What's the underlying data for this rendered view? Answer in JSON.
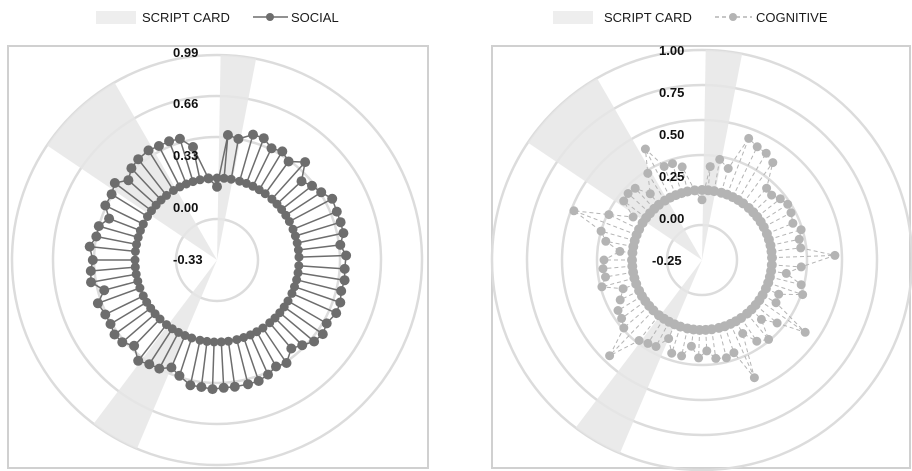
{
  "chart_data": [
    {
      "type": "radar",
      "subtype": "polar-lollipop",
      "legend": {
        "band_label": "SCRIPT CARD",
        "series_label": "SOCIAL",
        "position": "top"
      },
      "radial_ticks": [
        "0.99",
        "0.66",
        "0.33",
        "0.00",
        "-0.33"
      ],
      "rlim": [
        -0.66,
        0.99
      ],
      "colors": {
        "series": "#6d6d6d",
        "band": "#e6e6e6",
        "rings": "#dcdcdc"
      },
      "line_style": "solid",
      "script_card_bands": [
        {
          "start_deg": -56,
          "end_deg": -30,
          "value": 0.99
        },
        {
          "start_deg": 1,
          "end_deg": 11,
          "value": 0.99
        },
        {
          "start_deg": 203,
          "end_deg": 217,
          "value": 0.99
        }
      ],
      "series": [
        {
          "name": "SOCIAL",
          "angles": [
            0,
            5,
            10,
            16,
            21,
            26,
            31,
            36,
            42,
            47,
            52,
            57,
            62,
            68,
            73,
            78,
            83,
            88,
            94,
            99,
            104,
            109,
            114,
            120,
            125,
            130,
            135,
            140,
            146,
            151,
            156,
            161,
            166,
            172,
            177,
            182,
            187,
            192,
            198,
            203,
            208,
            213,
            218,
            224,
            229,
            234,
            239,
            244,
            250,
            255,
            260,
            265,
            270,
            276,
            281,
            286,
            291,
            296,
            302,
            307,
            312,
            317,
            322,
            328,
            333,
            338,
            343,
            348,
            354
          ],
          "values": [
            -0.07,
            0.35,
            0.33,
            0.39,
            0.39,
            0.34,
            0.36,
            0.32,
            0.4,
            0.27,
            0.31,
            0.34,
            0.39,
            0.38,
            0.38,
            0.38,
            0.34,
            0.38,
            0.37,
            0.38,
            0.37,
            0.39,
            0.39,
            0.36,
            0.38,
            0.36,
            0.31,
            0.27,
            0.34,
            0.32,
            0.35,
            0.37,
            0.37,
            0.37,
            0.37,
            0.38,
            0.37,
            0.37,
            0.32,
            0.28,
            0.33,
            0.34,
            0.37,
            0.3,
            0.35,
            0.36,
            0.34,
            0.34,
            0.36,
            0.28,
            0.37,
            0.36,
            0.34,
            0.37,
            0.33,
            0.33,
            0.27,
            0.34,
            0.34,
            0.37,
            0.3,
            0.35,
            0.37,
            0.38,
            0.37,
            0.37,
            0.36,
            0.27,
            0.0
          ]
        }
      ]
    },
    {
      "type": "radar",
      "subtype": "polar-lollipop",
      "legend": {
        "band_label": "SCRIPT CARD",
        "series_label": "COGNITIVE",
        "position": "top"
      },
      "radial_ticks": [
        "1.00",
        "0.75",
        "0.50",
        "0.25",
        "0.00",
        "-0.25"
      ],
      "rlim": [
        -0.5,
        1.0
      ],
      "colors": {
        "series": "#b4b4b4",
        "band": "#e6e6e6",
        "rings": "#dcdcdc"
      },
      "line_style": "dashed",
      "script_card_bands": [
        {
          "start_deg": -56,
          "end_deg": -30,
          "value": 1.0
        },
        {
          "start_deg": 1,
          "end_deg": 11,
          "value": 1.0
        },
        {
          "start_deg": 203,
          "end_deg": 217,
          "value": 1.0
        }
      ],
      "series": [
        {
          "name": "COGNITIVE",
          "angles": [
            0,
            5,
            10,
            16,
            21,
            26,
            31,
            36,
            42,
            47,
            52,
            57,
            62,
            68,
            73,
            78,
            83,
            88,
            94,
            99,
            104,
            109,
            114,
            120,
            125,
            130,
            135,
            140,
            146,
            151,
            156,
            161,
            166,
            172,
            177,
            182,
            187,
            192,
            198,
            203,
            208,
            213,
            218,
            224,
            229,
            234,
            239,
            244,
            250,
            255,
            260,
            265,
            270,
            276,
            281,
            286,
            291,
            296,
            302,
            307,
            312,
            317,
            322,
            328,
            333,
            338,
            343,
            348,
            354
          ],
          "values": [
            -0.07,
            0.17,
            0.23,
            0.18,
            0.43,
            0.4,
            0.39,
            0.36,
            0.19,
            0.18,
            0.21,
            0.23,
            0.22,
            0.2,
            0.24,
            0.21,
            0.21,
            0.45,
            0.21,
            0.11,
            0.23,
            0.26,
            0.1,
            0.11,
            0.4,
            0.2,
            0.1,
            0.24,
            0.2,
            0.1,
            0.42,
            0.2,
            0.22,
            0.21,
            0.15,
            0.2,
            0.12,
            0.2,
            0.2,
            0.11,
            0.2,
            0.21,
            0.23,
            0.45,
            0.24,
            0.21,
            0.2,
            0.15,
            0.1,
            0.24,
            0.2,
            0.21,
            0.2,
            0.09,
            0.2,
            0.25,
            0.48,
            0.24,
            0.08,
            0.2,
            0.21,
            0.2,
            0.1,
            0.23,
            0.39,
            0.22,
            0.22,
            0.18,
            0.0
          ]
        }
      ]
    }
  ]
}
